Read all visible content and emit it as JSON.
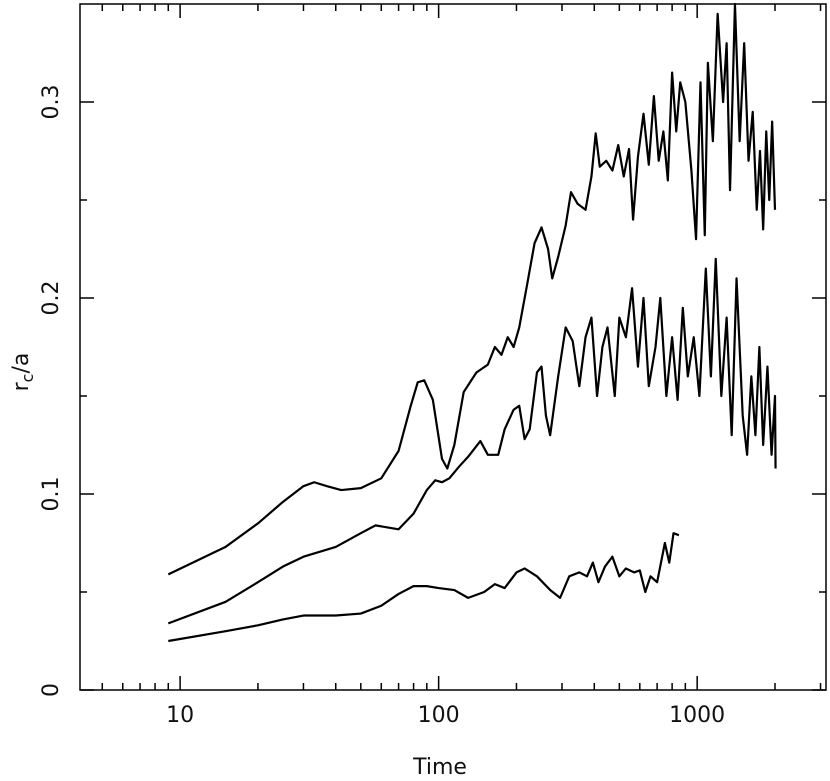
{
  "chart_data": {
    "type": "line",
    "xlabel": "Time",
    "ylabel": [
      "r",
      "c",
      "/a"
    ],
    "xscale": "log",
    "xlim": [
      4.1,
      3150
    ],
    "ylim": [
      0,
      0.35
    ],
    "xticks": [
      10,
      100,
      1000
    ],
    "xminorticks": [
      5,
      6,
      7,
      8,
      9,
      20,
      30,
      40,
      50,
      60,
      70,
      80,
      90,
      200,
      300,
      400,
      500,
      600,
      700,
      800,
      900,
      2000,
      3000
    ],
    "yticks": [
      0,
      0.1,
      0.2,
      0.3
    ],
    "yminorticks": [
      0.05,
      0.15,
      0.25
    ],
    "series": [
      {
        "color": "#000000",
        "x": [
          9,
          15,
          20,
          25,
          30,
          33,
          37,
          42,
          50,
          60,
          70,
          78,
          83,
          88,
          95,
          103,
          108,
          115,
          125,
          140,
          155,
          165,
          175,
          185,
          195,
          205,
          220,
          235,
          250,
          265,
          275,
          290,
          310,
          325,
          345,
          370,
          390,
          405,
          420,
          445,
          470,
          495,
          520,
          545,
          565,
          590,
          620,
          650,
          680,
          710,
          740,
          770,
          800,
          830,
          860,
          900,
          950,
          990,
          1030,
          1070,
          1100,
          1150,
          1200,
          1260,
          1300,
          1340,
          1400,
          1460,
          1520,
          1580,
          1640,
          1700,
          1750,
          1800,
          1850,
          1900,
          1950,
          2000
        ],
        "values": [
          0.059,
          0.073,
          0.085,
          0.096,
          0.104,
          0.106,
          0.104,
          0.102,
          0.103,
          0.108,
          0.122,
          0.145,
          0.157,
          0.158,
          0.148,
          0.118,
          0.113,
          0.125,
          0.152,
          0.162,
          0.166,
          0.175,
          0.171,
          0.18,
          0.175,
          0.185,
          0.207,
          0.228,
          0.236,
          0.225,
          0.21,
          0.221,
          0.237,
          0.254,
          0.248,
          0.245,
          0.262,
          0.284,
          0.267,
          0.27,
          0.265,
          0.278,
          0.262,
          0.276,
          0.24,
          0.272,
          0.294,
          0.268,
          0.303,
          0.27,
          0.285,
          0.26,
          0.315,
          0.285,
          0.31,
          0.3,
          0.265,
          0.23,
          0.31,
          0.232,
          0.32,
          0.28,
          0.345,
          0.3,
          0.33,
          0.255,
          0.35,
          0.28,
          0.33,
          0.27,
          0.295,
          0.245,
          0.275,
          0.235,
          0.285,
          0.25,
          0.29,
          0.245
        ]
      },
      {
        "color": "#000000",
        "x": [
          9,
          15,
          20,
          25,
          30,
          40,
          50,
          57,
          63,
          70,
          80,
          90,
          97,
          103,
          110,
          120,
          130,
          145,
          155,
          170,
          180,
          195,
          205,
          215,
          225,
          240,
          250,
          260,
          270,
          290,
          310,
          330,
          350,
          370,
          390,
          410,
          430,
          450,
          480,
          500,
          530,
          560,
          590,
          620,
          650,
          690,
          720,
          760,
          800,
          840,
          880,
          920,
          970,
          1020,
          1080,
          1130,
          1180,
          1240,
          1300,
          1360,
          1420,
          1500,
          1560,
          1620,
          1680,
          1740,
          1800,
          1870,
          1940,
          2000,
          2010
        ],
        "values": [
          0.034,
          0.045,
          0.055,
          0.063,
          0.068,
          0.073,
          0.08,
          0.084,
          0.083,
          0.082,
          0.09,
          0.102,
          0.107,
          0.106,
          0.108,
          0.114,
          0.119,
          0.127,
          0.12,
          0.12,
          0.133,
          0.143,
          0.145,
          0.128,
          0.133,
          0.162,
          0.165,
          0.14,
          0.13,
          0.16,
          0.185,
          0.178,
          0.155,
          0.18,
          0.19,
          0.15,
          0.175,
          0.185,
          0.15,
          0.19,
          0.18,
          0.205,
          0.165,
          0.2,
          0.155,
          0.175,
          0.2,
          0.15,
          0.18,
          0.148,
          0.195,
          0.16,
          0.18,
          0.15,
          0.215,
          0.16,
          0.22,
          0.15,
          0.19,
          0.13,
          0.21,
          0.14,
          0.12,
          0.16,
          0.13,
          0.175,
          0.125,
          0.165,
          0.12,
          0.15,
          0.113
        ]
      },
      {
        "color": "#000000",
        "x": [
          9,
          15,
          20,
          25,
          30,
          40,
          50,
          60,
          70,
          80,
          90,
          100,
          115,
          130,
          150,
          165,
          180,
          200,
          215,
          240,
          270,
          295,
          320,
          350,
          375,
          395,
          415,
          440,
          470,
          500,
          530,
          570,
          600,
          630,
          660,
          700,
          750,
          780,
          810,
          850
        ],
        "values": [
          0.025,
          0.03,
          0.033,
          0.036,
          0.038,
          0.038,
          0.039,
          0.043,
          0.049,
          0.053,
          0.053,
          0.052,
          0.051,
          0.047,
          0.05,
          0.054,
          0.052,
          0.06,
          0.062,
          0.058,
          0.051,
          0.047,
          0.058,
          0.06,
          0.058,
          0.065,
          0.055,
          0.063,
          0.068,
          0.058,
          0.062,
          0.06,
          0.061,
          0.05,
          0.058,
          0.055,
          0.075,
          0.065,
          0.08,
          0.079
        ]
      }
    ]
  }
}
